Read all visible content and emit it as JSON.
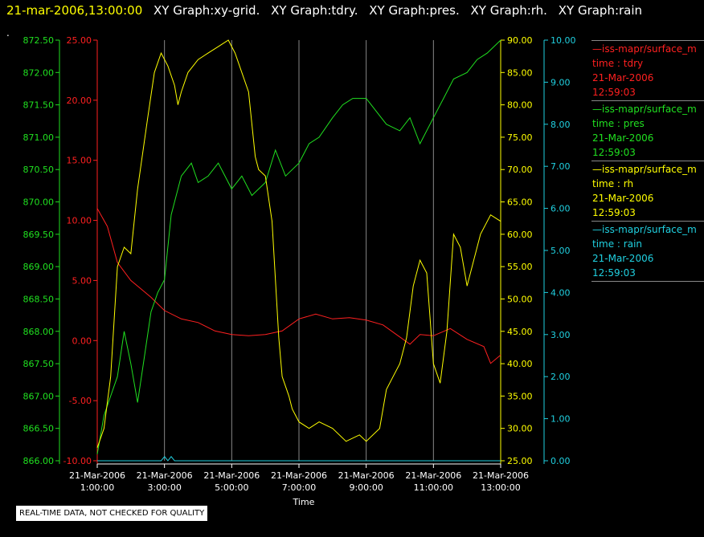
{
  "title": {
    "timestamp": "21-mar-2006,13:00:00",
    "graphs": [
      "XY Graph:xy-grid.",
      "XY Graph:tdry.",
      "XY Graph:pres.",
      "XY Graph:rh.",
      "XY Graph:rain"
    ]
  },
  "dot": ".",
  "footer_note": "REAL-TIME DATA, NOT CHECKED FOR QUALITY",
  "legend": [
    {
      "source": "—iss-mapr/surface_m",
      "var": "time : tdry",
      "date": "21-Mar-2006",
      "time": "12:59:03",
      "color": "#ff2020"
    },
    {
      "source": "—iss-mapr/surface_m",
      "var": "time : pres",
      "date": "21-Mar-2006",
      "time": "12:59:03",
      "color": "#20e020"
    },
    {
      "source": "—iss-mapr/surface_m",
      "var": "time : rh",
      "date": "21-Mar-2006",
      "time": "12:59:03",
      "color": "#ffff00"
    },
    {
      "source": "—iss-mapr/surface_m",
      "var": "time : rain",
      "date": "21-Mar-2006",
      "time": "12:59:03",
      "color": "#20d0e0"
    }
  ],
  "chart_data": {
    "type": "line",
    "xlabel": "Time",
    "x_ticks": [
      {
        "date": "21-Mar-2006",
        "time": "1:00:00"
      },
      {
        "date": "21-Mar-2006",
        "time": "3:00:00"
      },
      {
        "date": "21-Mar-2006",
        "time": "5:00:00"
      },
      {
        "date": "21-Mar-2006",
        "time": "7:00:00"
      },
      {
        "date": "21-Mar-2006",
        "time": "9:00:00"
      },
      {
        "date": "21-Mar-2006",
        "time": "11:00:00"
      },
      {
        "date": "21-Mar-2006",
        "time": "13:00:00"
      }
    ],
    "xlim_hours": [
      1,
      13
    ],
    "grid": "vertical",
    "axes": [
      {
        "name": "pres",
        "color": "#20e020",
        "ylim": [
          866.0,
          872.5
        ],
        "ticks": [
          "866.00",
          "866.50",
          "867.00",
          "867.50",
          "868.00",
          "868.50",
          "869.00",
          "869.50",
          "870.00",
          "870.50",
          "871.00",
          "871.50",
          "872.00",
          "872.50"
        ]
      },
      {
        "name": "tdry",
        "color": "#ff2020",
        "ylim": [
          -10,
          25
        ],
        "ticks": [
          "-10.00",
          "-5.00",
          "0.00",
          "5.00",
          "10.00",
          "15.00",
          "20.00",
          "25.00"
        ]
      },
      {
        "name": "rh",
        "color": "#ffff00",
        "ylim": [
          25,
          90
        ],
        "ticks": [
          "25.00",
          "30.00",
          "35.00",
          "40.00",
          "45.00",
          "50.00",
          "55.00",
          "60.00",
          "65.00",
          "70.00",
          "75.00",
          "80.00",
          "85.00",
          "90.00"
        ]
      },
      {
        "name": "rain",
        "color": "#20d0e0",
        "ylim": [
          0,
          10
        ],
        "ticks": [
          "0.00",
          "1.00",
          "2.00",
          "3.00",
          "4.00",
          "5.00",
          "6.00",
          "7.00",
          "8.00",
          "9.00",
          "10.00"
        ]
      }
    ],
    "series": [
      {
        "name": "tdry",
        "color": "#ff2020",
        "x": [
          1.0,
          1.3,
          1.6,
          2.0,
          2.3,
          2.6,
          3.0,
          3.5,
          4.0,
          4.5,
          5.0,
          5.5,
          6.0,
          6.5,
          7.0,
          7.5,
          8.0,
          8.5,
          9.0,
          9.5,
          10.0,
          10.3,
          10.6,
          11.0,
          11.5,
          12.0,
          12.5,
          12.7,
          13.0
        ],
        "y": [
          11.0,
          9.5,
          6.5,
          5.0,
          4.3,
          3.6,
          2.5,
          1.8,
          1.5,
          0.8,
          0.5,
          0.4,
          0.5,
          0.8,
          1.8,
          2.2,
          1.8,
          1.9,
          1.7,
          1.3,
          0.3,
          -0.3,
          0.5,
          0.4,
          1.0,
          0.1,
          -0.5,
          -1.9,
          -1.2
        ]
      },
      {
        "name": "pres",
        "color": "#20e020",
        "x": [
          1.0,
          1.2,
          1.4,
          1.6,
          1.8,
          2.0,
          2.2,
          2.4,
          2.6,
          2.8,
          3.0,
          3.2,
          3.5,
          3.8,
          4.0,
          4.3,
          4.6,
          5.0,
          5.3,
          5.6,
          6.0,
          6.3,
          6.6,
          7.0,
          7.3,
          7.6,
          8.0,
          8.3,
          8.6,
          9.0,
          9.3,
          9.6,
          10.0,
          10.3,
          10.6,
          11.0,
          11.3,
          11.6,
          12.0,
          12.3,
          12.6,
          13.0
        ],
        "y": [
          866.1,
          866.7,
          867.0,
          867.3,
          868.0,
          867.5,
          866.9,
          867.6,
          868.3,
          868.6,
          868.8,
          869.8,
          870.4,
          870.6,
          870.3,
          870.4,
          870.6,
          870.2,
          870.4,
          870.1,
          870.3,
          870.8,
          870.4,
          870.6,
          870.9,
          871.0,
          871.3,
          871.5,
          871.6,
          871.6,
          871.4,
          871.2,
          871.1,
          871.3,
          870.9,
          871.3,
          871.6,
          871.9,
          872.0,
          872.2,
          872.3,
          872.5
        ]
      },
      {
        "name": "rh",
        "color": "#ffff00",
        "x": [
          1.0,
          1.2,
          1.4,
          1.6,
          1.8,
          2.0,
          2.2,
          2.5,
          2.7,
          2.9,
          3.1,
          3.3,
          3.4,
          3.5,
          3.7,
          4.0,
          4.3,
          4.6,
          4.9,
          5.1,
          5.3,
          5.5,
          5.7,
          5.8,
          6.0,
          6.2,
          6.4,
          6.5,
          6.7,
          6.8,
          7.0,
          7.3,
          7.6,
          8.0,
          8.4,
          8.8,
          9.0,
          9.4,
          9.6,
          9.8,
          10.0,
          10.2,
          10.4,
          10.6,
          10.8,
          11.0,
          11.2,
          11.4,
          11.6,
          11.8,
          12.0,
          12.2,
          12.4,
          12.7,
          13.0
        ],
        "y": [
          27.0,
          30.0,
          38.0,
          55.0,
          58.0,
          57.0,
          67.0,
          78.0,
          85.0,
          88.0,
          86.0,
          83.0,
          80.0,
          82.0,
          85.0,
          87.0,
          88.0,
          89.0,
          90.0,
          88.0,
          85.0,
          82.0,
          72.0,
          70.0,
          69.0,
          62.0,
          44.0,
          38.0,
          35.0,
          33.0,
          31.0,
          30.0,
          31.0,
          30.0,
          28.0,
          29.0,
          28.0,
          30.0,
          36.0,
          38.0,
          40.0,
          44.0,
          52.0,
          56.0,
          54.0,
          40.0,
          37.0,
          45.0,
          60.0,
          58.0,
          52.0,
          56.0,
          60.0,
          63.0,
          62.0
        ]
      },
      {
        "name": "rain",
        "color": "#20d0e0",
        "x": [
          1.0,
          2.9,
          3.0,
          3.1,
          3.2,
          3.3,
          13.0
        ],
        "y": [
          0.0,
          0.0,
          0.1,
          0.0,
          0.1,
          0.0,
          0.0
        ]
      }
    ]
  }
}
